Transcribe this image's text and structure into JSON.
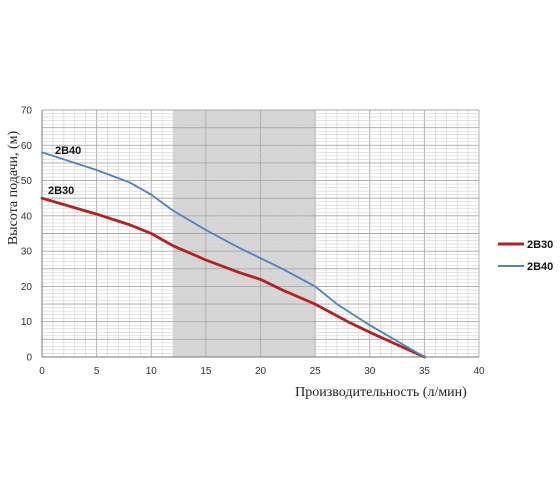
{
  "chart_data": {
    "type": "line",
    "xlabel": "Производительность (л/мин)",
    "ylabel": "Высота подачи, (м)",
    "xlim": [
      0,
      40
    ],
    "ylim": [
      0,
      70
    ],
    "xticks": [
      "0",
      "5",
      "10",
      "15",
      "20",
      "25",
      "30",
      "35",
      "40"
    ],
    "yticks": [
      "0",
      "10",
      "20",
      "30",
      "40",
      "50",
      "60",
      "70"
    ],
    "grid": true,
    "minor_grid_step": 1,
    "highlight_band": [
      12,
      25
    ],
    "legend_position": "right",
    "series": [
      {
        "name": "2B30",
        "color": "#b22222",
        "x": [
          0,
          5,
          8,
          10,
          12,
          15,
          18,
          20,
          22,
          25,
          28,
          30,
          35
        ],
        "y": [
          45,
          40.5,
          37.5,
          35,
          31.5,
          27.5,
          24,
          22,
          19,
          15,
          10,
          7,
          0
        ]
      },
      {
        "name": "2B40",
        "color": "#4f81bd",
        "x": [
          0,
          5,
          8,
          10,
          12,
          15,
          18,
          20,
          22,
          25,
          27,
          30,
          35
        ],
        "y": [
          58,
          53,
          49.5,
          46,
          41.5,
          36,
          31,
          28,
          25,
          20,
          15,
          9,
          0
        ]
      }
    ],
    "curve_labels": [
      "2B40",
      "2B30"
    ],
    "legend": [
      "2B30",
      "2B40"
    ]
  }
}
